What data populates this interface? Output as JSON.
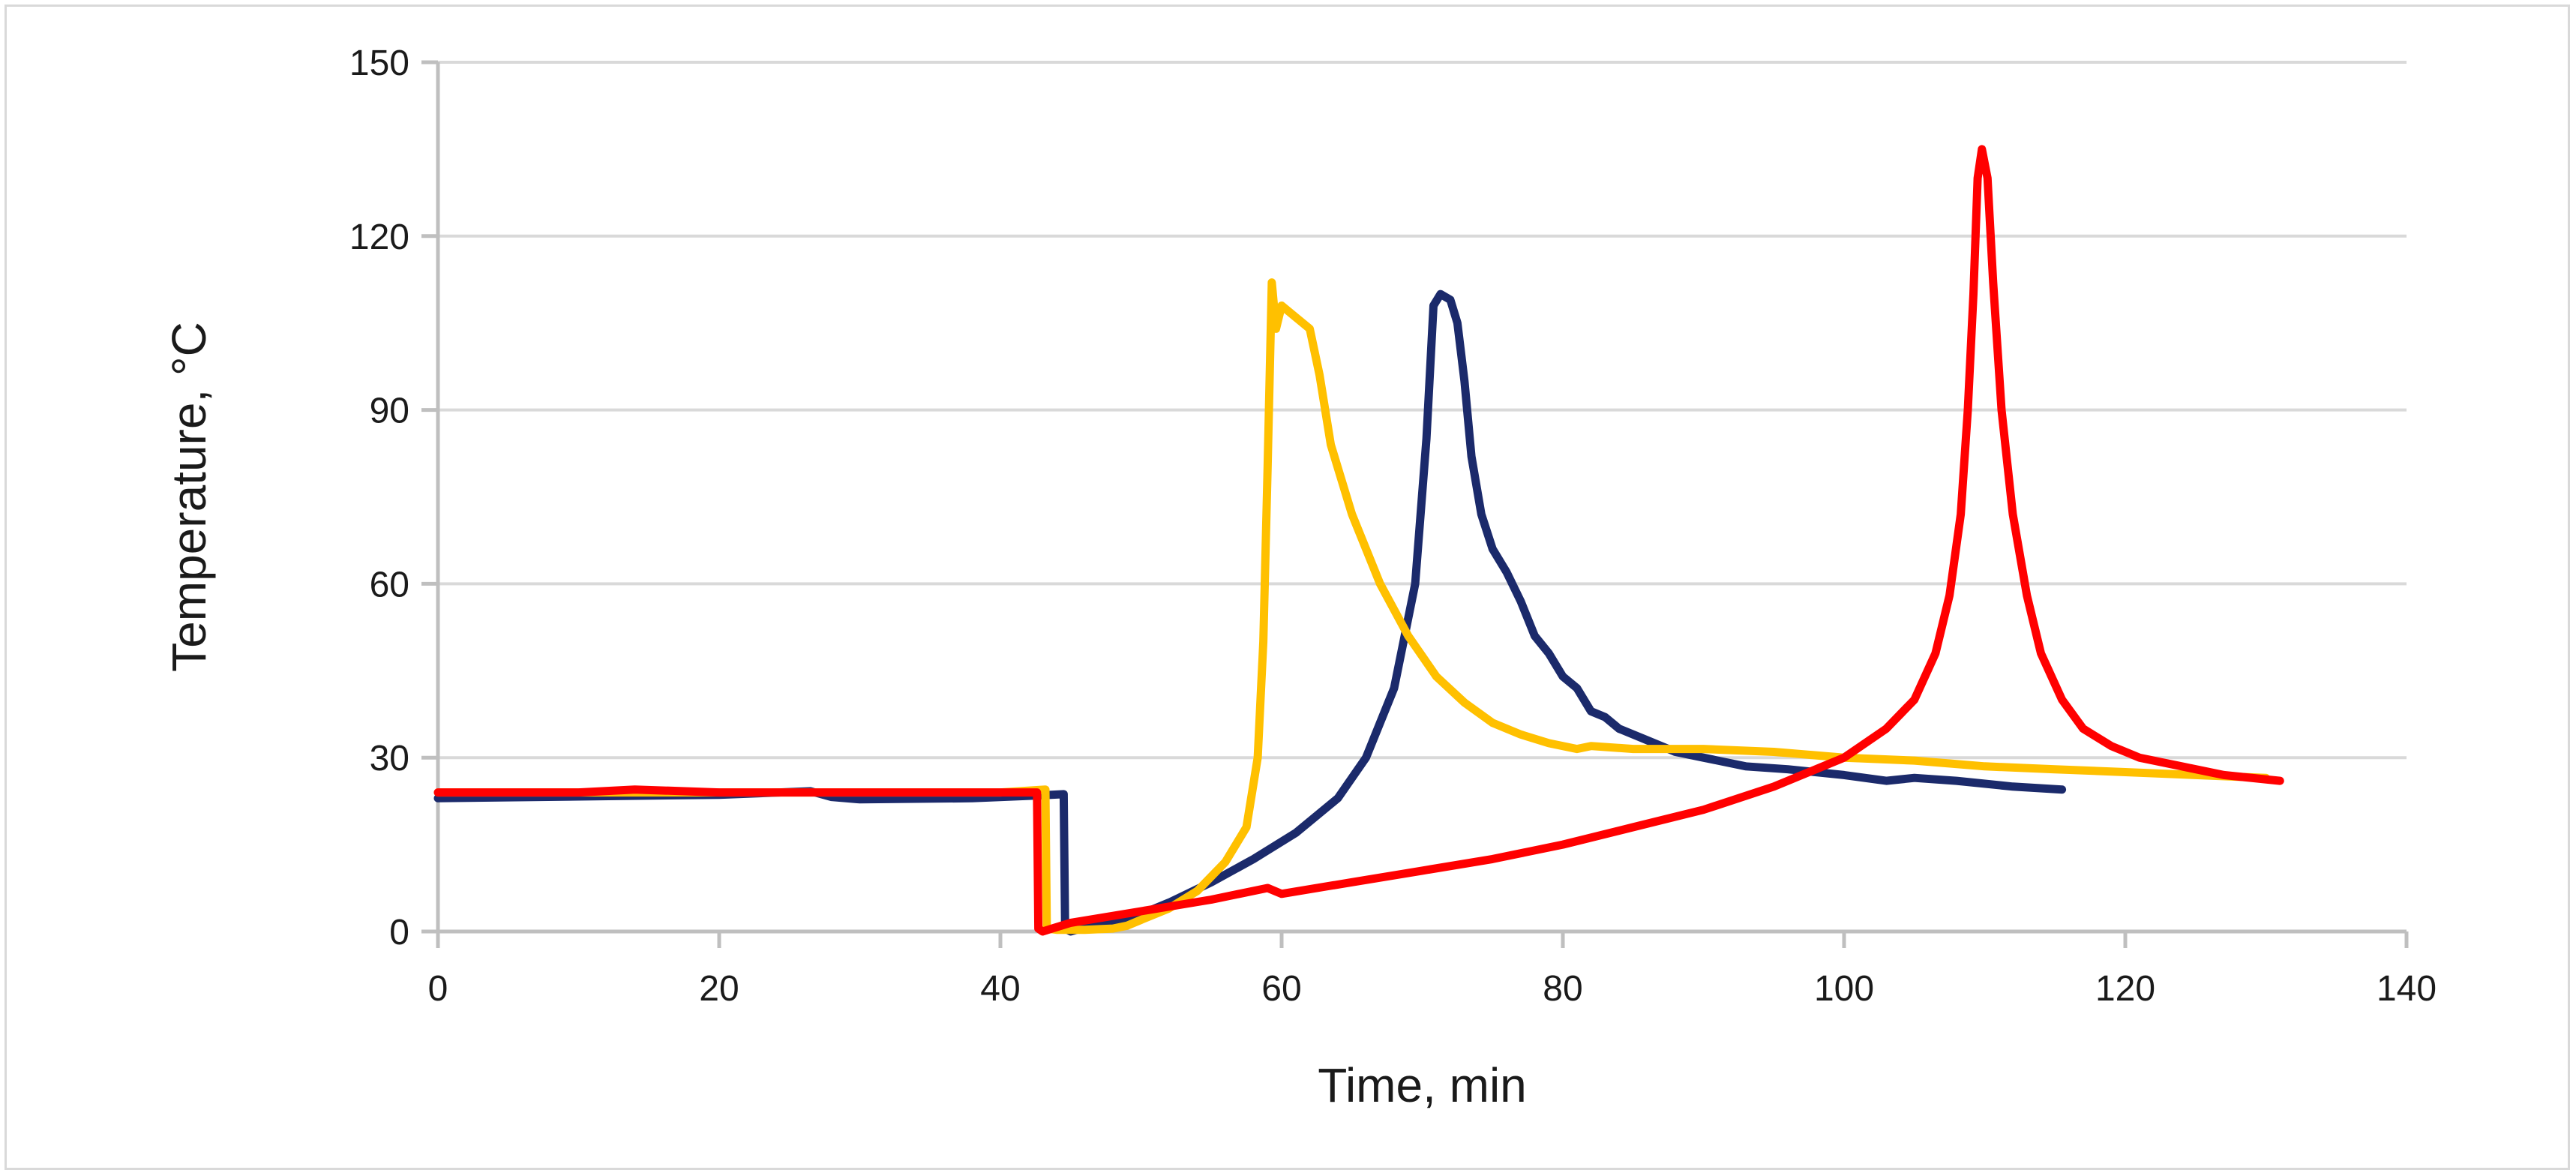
{
  "chart_data": {
    "type": "line",
    "xlabel": "Time, min",
    "ylabel": "Temperature, °C",
    "xlim": [
      0,
      140
    ],
    "ylim": [
      0,
      150
    ],
    "x_ticks": [
      0,
      20,
      40,
      60,
      80,
      100,
      120,
      140
    ],
    "y_ticks": [
      0,
      30,
      60,
      90,
      120,
      150
    ],
    "grid": "horizontal",
    "legend": "none",
    "series": [
      {
        "color": "#1b2a6b",
        "points": [
          [
            0,
            23
          ],
          [
            10,
            23.3
          ],
          [
            20,
            23.6
          ],
          [
            26.5,
            24.2
          ],
          [
            28,
            23.2
          ],
          [
            30,
            22.8
          ],
          [
            38,
            23
          ],
          [
            43,
            23.5
          ],
          [
            44.5,
            23.7
          ],
          [
            44.6,
            0.5
          ],
          [
            45,
            0
          ],
          [
            46,
            0.7
          ],
          [
            48,
            1.5
          ],
          [
            50,
            3
          ],
          [
            52,
            5
          ],
          [
            55,
            8.5
          ],
          [
            58,
            12.5
          ],
          [
            61,
            17
          ],
          [
            64,
            23
          ],
          [
            66,
            30
          ],
          [
            68,
            42
          ],
          [
            69.5,
            60
          ],
          [
            70.3,
            85
          ],
          [
            70.8,
            108
          ],
          [
            71.3,
            110
          ],
          [
            72,
            109
          ],
          [
            72.5,
            105
          ],
          [
            73,
            95
          ],
          [
            73.5,
            82
          ],
          [
            74.2,
            72
          ],
          [
            75,
            66
          ],
          [
            76,
            62
          ],
          [
            77,
            57
          ],
          [
            78,
            51
          ],
          [
            79,
            48
          ],
          [
            80,
            44
          ],
          [
            81,
            42
          ],
          [
            82,
            38
          ],
          [
            83,
            37
          ],
          [
            84,
            35
          ],
          [
            86,
            33
          ],
          [
            88,
            31
          ],
          [
            90,
            30
          ],
          [
            93,
            28.5
          ],
          [
            96,
            28
          ],
          [
            100,
            27
          ],
          [
            103,
            26
          ],
          [
            105,
            26.5
          ],
          [
            108,
            26
          ],
          [
            112,
            25
          ],
          [
            115.5,
            24.5
          ]
        ]
      },
      {
        "color": "#ffc000",
        "points": [
          [
            0,
            24
          ],
          [
            20,
            24
          ],
          [
            40,
            24
          ],
          [
            43.2,
            24.5
          ],
          [
            43.3,
            0.5
          ],
          [
            44,
            0.3
          ],
          [
            46,
            0.3
          ],
          [
            48,
            0.5
          ],
          [
            49,
            1
          ],
          [
            50,
            2
          ],
          [
            52,
            4
          ],
          [
            54,
            7
          ],
          [
            56,
            12
          ],
          [
            57.5,
            18
          ],
          [
            58.3,
            30
          ],
          [
            58.7,
            50
          ],
          [
            59,
            80
          ],
          [
            59.3,
            112
          ],
          [
            59.6,
            104
          ],
          [
            60,
            108
          ],
          [
            61,
            106
          ],
          [
            62,
            104
          ],
          [
            62.7,
            96
          ],
          [
            63.5,
            84
          ],
          [
            65,
            72
          ],
          [
            67,
            60
          ],
          [
            69,
            51
          ],
          [
            71,
            44
          ],
          [
            73,
            39.5
          ],
          [
            75,
            36
          ],
          [
            77,
            34
          ],
          [
            79,
            32.5
          ],
          [
            81,
            31.5
          ],
          [
            82,
            32
          ],
          [
            85,
            31.5
          ],
          [
            90,
            31.5
          ],
          [
            95,
            31
          ],
          [
            100,
            30
          ],
          [
            105,
            29.5
          ],
          [
            110,
            28.5
          ],
          [
            115,
            28
          ],
          [
            120,
            27.5
          ],
          [
            125,
            27
          ],
          [
            130,
            26.5
          ]
        ]
      },
      {
        "color": "#ff0000",
        "points": [
          [
            0,
            24
          ],
          [
            10,
            24
          ],
          [
            14,
            24.5
          ],
          [
            20,
            24
          ],
          [
            30,
            24
          ],
          [
            42.6,
            24
          ],
          [
            42.7,
            0.5
          ],
          [
            43,
            0
          ],
          [
            45,
            1.5
          ],
          [
            50,
            3.5
          ],
          [
            55,
            5.5
          ],
          [
            59,
            7.5
          ],
          [
            60,
            6.5
          ],
          [
            65,
            8.5
          ],
          [
            70,
            10.5
          ],
          [
            75,
            12.5
          ],
          [
            80,
            15
          ],
          [
            85,
            18
          ],
          [
            90,
            21
          ],
          [
            95,
            25
          ],
          [
            100,
            30
          ],
          [
            103,
            35
          ],
          [
            105,
            40
          ],
          [
            106.5,
            48
          ],
          [
            107.5,
            58
          ],
          [
            108.3,
            72
          ],
          [
            108.8,
            90
          ],
          [
            109.2,
            110
          ],
          [
            109.5,
            130
          ],
          [
            109.8,
            135
          ],
          [
            110.2,
            130
          ],
          [
            110.6,
            112
          ],
          [
            111.2,
            90
          ],
          [
            112,
            72
          ],
          [
            113,
            58
          ],
          [
            114,
            48
          ],
          [
            115.5,
            40
          ],
          [
            117,
            35
          ],
          [
            119,
            32
          ],
          [
            121,
            30
          ],
          [
            124,
            28.5
          ],
          [
            127,
            27
          ],
          [
            131,
            26
          ]
        ]
      }
    ]
  }
}
